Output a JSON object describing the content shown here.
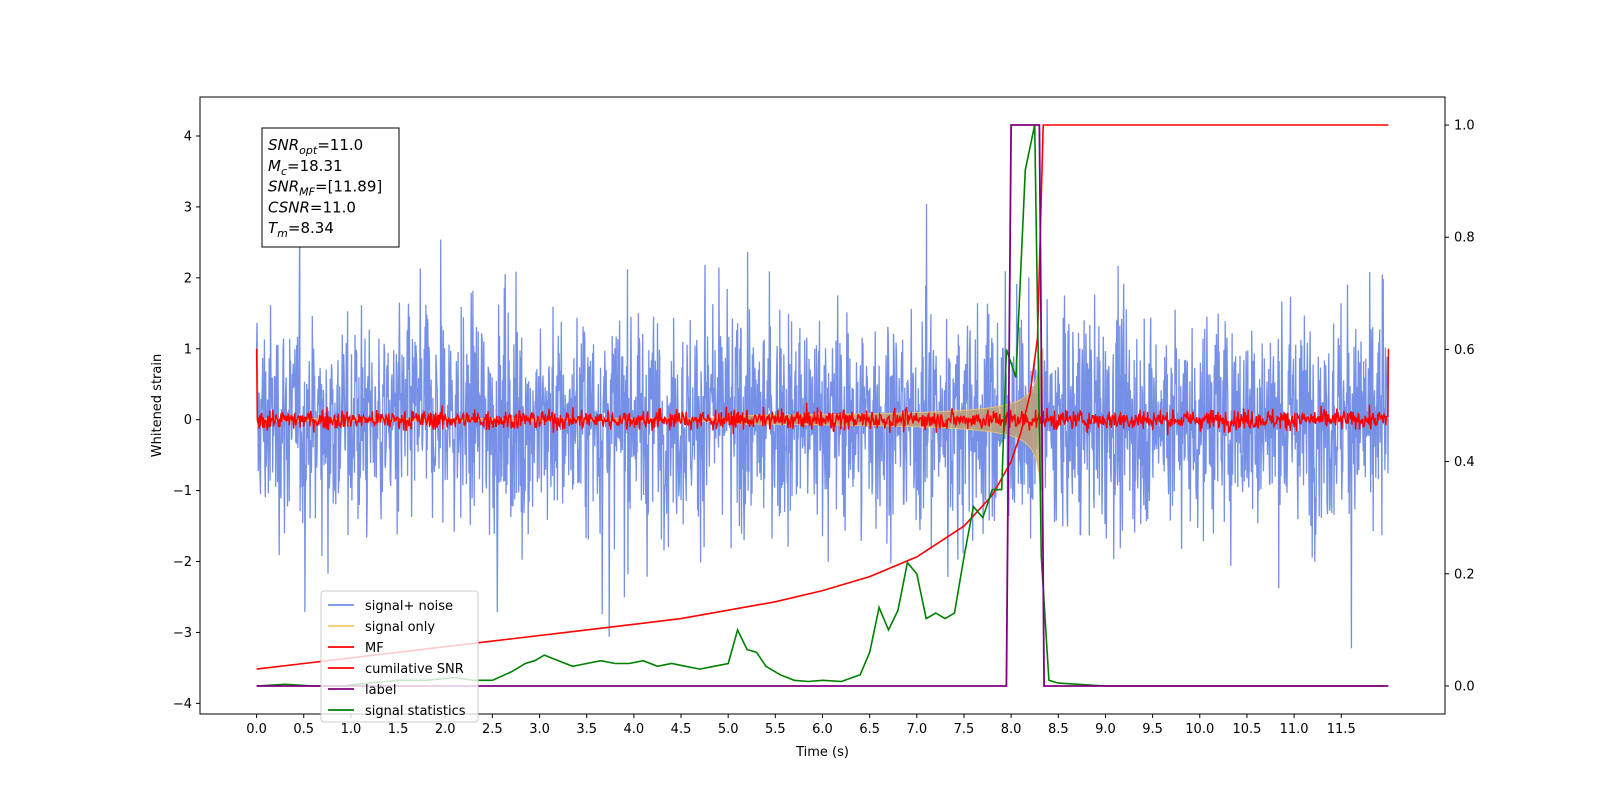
{
  "chart_data": {
    "type": "line",
    "title": "",
    "xlabel": "Time (s)",
    "ylabel": "Whitened strain",
    "ylabel_right": "",
    "xlim": [
      -0.6,
      12.6
    ],
    "ylim": [
      -4.15,
      4.55
    ],
    "ylim_right": [
      -0.05,
      1.05
    ],
    "x_ticks": [
      0.0,
      0.5,
      1.0,
      1.5,
      2.0,
      2.5,
      3.0,
      3.5,
      4.0,
      4.5,
      5.0,
      5.5,
      6.0,
      6.5,
      7.0,
      7.5,
      8.0,
      8.5,
      9.0,
      9.5,
      10.0,
      10.5,
      11.0,
      11.5
    ],
    "x_tick_labels": [
      "0.0",
      "0.5",
      "1.0",
      "1.5",
      "2.0",
      "2.5",
      "3.0",
      "3.5",
      "4.0",
      "4.5",
      "5.0",
      "5.5",
      "6.0",
      "6.5",
      "7.0",
      "7.5",
      "8.0",
      "8.5",
      "9.0",
      "9.5",
      "10.0",
      "10.5",
      "11.0",
      "11.5"
    ],
    "y_ticks": [
      -4,
      -3,
      -2,
      -1,
      0,
      1,
      2,
      3,
      4
    ],
    "y_tick_labels": [
      "−4",
      "−3",
      "−2",
      "−1",
      "0",
      "1",
      "2",
      "3",
      "4"
    ],
    "y_right_ticks": [
      0.0,
      0.2,
      0.4,
      0.6,
      0.8,
      1.0
    ],
    "y_right_tick_labels": [
      "0.0",
      "0.2",
      "0.4",
      "0.6",
      "0.8",
      "1.0"
    ],
    "grid": false,
    "legend_position": "lower-left",
    "annotation": {
      "lines": [
        {
          "math": "SNR",
          "sub": "opt",
          "rest": "=11.0"
        },
        {
          "math": "M",
          "sub": "c",
          "rest": "=18.31"
        },
        {
          "math": "SNR",
          "sub": "MF",
          "rest": "=[11.89]"
        },
        {
          "math": "CSNR",
          "sub": "",
          "rest": "=11.0"
        },
        {
          "math": "T",
          "sub": "m",
          "rest": "=8.34"
        }
      ]
    },
    "series": [
      {
        "name": "signal+ noise",
        "axis": "left",
        "color": "#7590e6",
        "kind": "noise_band",
        "x_range": [
          0.0,
          12.0
        ],
        "std": 0.75,
        "min": -3.8,
        "max": 3.65
      },
      {
        "name": "signal only",
        "axis": "left",
        "color": "#f5c56e",
        "kind": "chirp_envelope",
        "x_range": [
          0.0,
          8.34
        ],
        "peak_time": 8.34,
        "peak_amplitude": 1.0
      },
      {
        "name": "MF",
        "axis": "left",
        "color": "#ff0000",
        "kind": "noise_band",
        "x_range": [
          0.0,
          12.0
        ],
        "std": 0.07,
        "edge_values": [
          1.0,
          1.0
        ]
      },
      {
        "name": "cumilative SNR",
        "axis": "right",
        "color": "#ff0000",
        "x": [
          0.0,
          0.5,
          1.0,
          1.5,
          2.0,
          2.5,
          3.0,
          3.5,
          4.0,
          4.5,
          5.0,
          5.5,
          6.0,
          6.5,
          7.0,
          7.5,
          7.8,
          8.0,
          8.1,
          8.2,
          8.28,
          8.34,
          8.4,
          9.0,
          10.0,
          11.0,
          12.0
        ],
        "values": [
          0.03,
          0.04,
          0.05,
          0.06,
          0.07,
          0.08,
          0.09,
          0.1,
          0.11,
          0.12,
          0.135,
          0.15,
          0.17,
          0.195,
          0.23,
          0.285,
          0.34,
          0.4,
          0.45,
          0.52,
          0.62,
          1.0,
          1.0,
          1.0,
          1.0,
          1.0,
          1.0
        ]
      },
      {
        "name": "label",
        "axis": "right",
        "color": "#800080",
        "x": [
          0.0,
          7.95,
          8.0,
          8.3,
          8.35,
          12.0
        ],
        "values": [
          0.0,
          0.0,
          1.0,
          1.0,
          0.0,
          0.0
        ]
      },
      {
        "name": "signal statistics",
        "axis": "right",
        "color": "#008000",
        "x": [
          0.0,
          0.3,
          0.6,
          0.9,
          1.2,
          1.5,
          1.8,
          2.1,
          2.3,
          2.5,
          2.7,
          2.85,
          2.95,
          3.05,
          3.2,
          3.35,
          3.5,
          3.65,
          3.8,
          3.95,
          4.1,
          4.25,
          4.4,
          4.55,
          4.7,
          4.85,
          5.0,
          5.1,
          5.2,
          5.3,
          5.4,
          5.55,
          5.7,
          5.85,
          6.0,
          6.2,
          6.4,
          6.5,
          6.6,
          6.7,
          6.8,
          6.9,
          7.0,
          7.1,
          7.2,
          7.3,
          7.4,
          7.5,
          7.6,
          7.7,
          7.8,
          7.9,
          7.95,
          8.05,
          8.15,
          8.25,
          8.32,
          8.4,
          8.5,
          9.0,
          10.0,
          11.0,
          11.95
        ],
        "values": [
          0.0,
          0.003,
          0.0,
          0.0,
          0.005,
          0.01,
          0.01,
          0.015,
          0.01,
          0.01,
          0.025,
          0.04,
          0.045,
          0.055,
          0.045,
          0.035,
          0.04,
          0.045,
          0.04,
          0.04,
          0.045,
          0.035,
          0.04,
          0.035,
          0.03,
          0.035,
          0.04,
          0.1,
          0.065,
          0.06,
          0.035,
          0.02,
          0.01,
          0.008,
          0.01,
          0.008,
          0.02,
          0.06,
          0.14,
          0.1,
          0.135,
          0.22,
          0.2,
          0.12,
          0.13,
          0.12,
          0.13,
          0.23,
          0.32,
          0.3,
          0.35,
          0.35,
          0.6,
          0.55,
          0.92,
          1.0,
          0.23,
          0.01,
          0.005,
          0.0,
          0.0,
          0.0,
          0.0
        ]
      }
    ]
  }
}
